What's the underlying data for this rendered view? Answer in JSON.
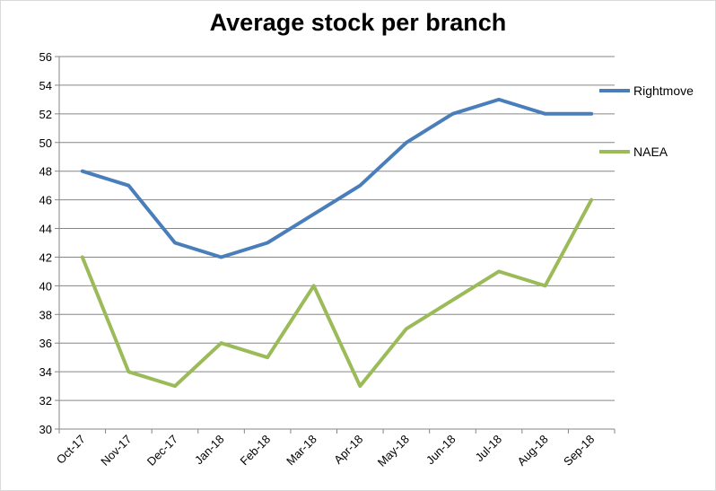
{
  "chart_data": {
    "type": "line",
    "title": "Average stock per branch",
    "xlabel": "",
    "ylabel": "",
    "categories": [
      "Oct-17",
      "Nov-17",
      "Dec-17",
      "Jan-18",
      "Feb-18",
      "Mar-18",
      "Apr-18",
      "May-18",
      "Jun-18",
      "Jul-18",
      "Aug-18",
      "Sep-18"
    ],
    "ylim": [
      30,
      56
    ],
    "yticks": [
      30,
      32,
      34,
      36,
      38,
      40,
      42,
      44,
      46,
      48,
      50,
      52,
      54,
      56
    ],
    "grid": true,
    "legend_position": "right",
    "series": [
      {
        "name": "Rightmove",
        "color": "#4a7ebb",
        "values": [
          48,
          47,
          43,
          42,
          43,
          45,
          47,
          50,
          52,
          53,
          52,
          52
        ]
      },
      {
        "name": "NAEA",
        "color": "#9bbb59",
        "values": [
          42,
          34,
          33,
          36,
          35,
          40,
          33,
          37,
          39,
          41,
          40,
          46
        ]
      }
    ]
  }
}
